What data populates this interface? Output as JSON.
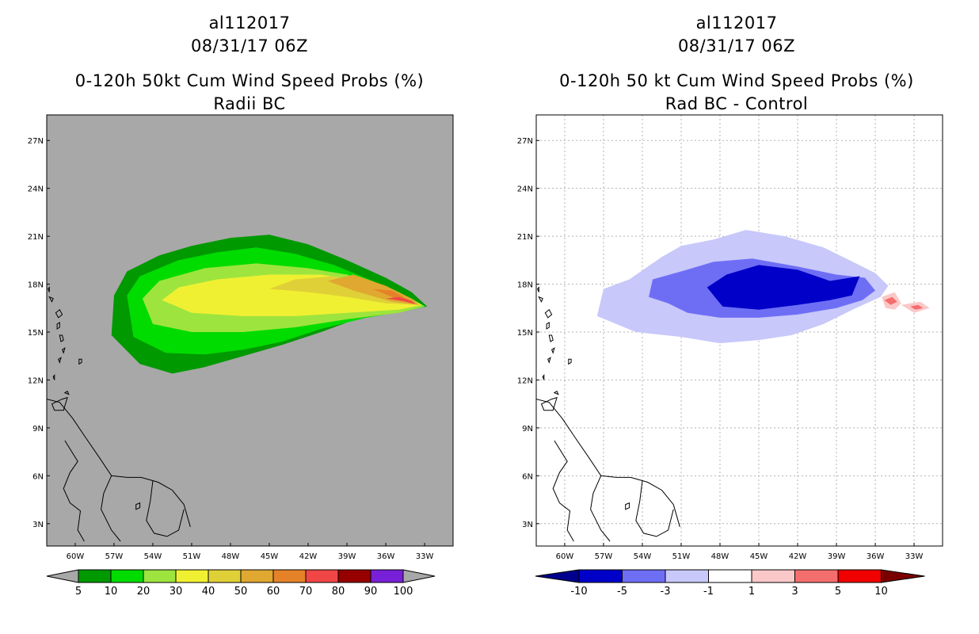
{
  "chart_data": [
    {
      "type": "heatmap",
      "title_line1": "al112017",
      "title_line2": "08/31/17 06Z",
      "title_line3": "0-120h 50kt Cum Wind Speed Probs (%)",
      "title_line4": "Radii BC",
      "x_ticks": [
        "60W",
        "57W",
        "54W",
        "51W",
        "48W",
        "45W",
        "42W",
        "39W",
        "36W",
        "33W"
      ],
      "y_ticks": [
        "3N",
        "6N",
        "9N",
        "12N",
        "15N",
        "18N",
        "21N",
        "24N",
        "27N"
      ],
      "lon_range": [
        -62.2,
        -30.8
      ],
      "lat_range": [
        1.6,
        28.6
      ],
      "background_color": "#a8a8a8",
      "grid": false,
      "colorbar": {
        "labels": [
          "5",
          "10",
          "20",
          "30",
          "40",
          "50",
          "60",
          "70",
          "80",
          "90",
          "100"
        ],
        "colors": [
          "#009900",
          "#00dc00",
          "#9ee43e",
          "#f0f032",
          "#e0d038",
          "#e0a830",
          "#e58228",
          "#f04646",
          "#960000",
          "#7820d8"
        ],
        "under_color": "#a8a8a8",
        "over_color": "#a8a8a8"
      },
      "levels": [
        {
          "label": "5",
          "color": "#009900",
          "points": [
            [
              -57,
              17.3
            ],
            [
              -56,
              18.8
            ],
            [
              -53.5,
              19.8
            ],
            [
              -51,
              20.4
            ],
            [
              -48,
              20.9
            ],
            [
              -45,
              21.1
            ],
            [
              -42,
              20.5
            ],
            [
              -39,
              19.5
            ],
            [
              -36,
              18.4
            ],
            [
              -34,
              17.5
            ],
            [
              -32.8,
              16.6
            ],
            [
              -33.5,
              16.5
            ],
            [
              -35.5,
              16.4
            ],
            [
              -38,
              15.9
            ],
            [
              -41,
              15.0
            ],
            [
              -44,
              14.2
            ],
            [
              -47,
              13.5
            ],
            [
              -50,
              12.8
            ],
            [
              -52.5,
              12.4
            ],
            [
              -55,
              13.0
            ],
            [
              -57.2,
              14.8
            ]
          ]
        },
        {
          "label": "10",
          "color": "#00dc00",
          "points": [
            [
              -56,
              17.3
            ],
            [
              -55,
              18.5
            ],
            [
              -52,
              19.5
            ],
            [
              -49,
              20.0
            ],
            [
              -46,
              20.3
            ],
            [
              -43,
              19.9
            ],
            [
              -40,
              19.2
            ],
            [
              -37,
              18.2
            ],
            [
              -34.5,
              17.3
            ],
            [
              -32.9,
              16.6
            ],
            [
              -34.5,
              16.3
            ],
            [
              -37.5,
              15.9
            ],
            [
              -41,
              15.2
            ],
            [
              -44,
              14.4
            ],
            [
              -47,
              13.9
            ],
            [
              -50,
              13.6
            ],
            [
              -53,
              13.7
            ],
            [
              -55.5,
              14.7
            ]
          ]
        },
        {
          "label": "20",
          "color": "#9ee43e",
          "points": [
            [
              -54.8,
              17.1
            ],
            [
              -53.5,
              18.2
            ],
            [
              -50,
              19.0
            ],
            [
              -46,
              19.3
            ],
            [
              -42,
              19.0
            ],
            [
              -39,
              18.6
            ],
            [
              -36,
              17.8
            ],
            [
              -34,
              17.1
            ],
            [
              -33,
              16.6
            ],
            [
              -35,
              16.2
            ],
            [
              -39,
              15.8
            ],
            [
              -43,
              15.3
            ],
            [
              -47,
              15.0
            ],
            [
              -51,
              15.0
            ],
            [
              -54,
              15.5
            ]
          ]
        },
        {
          "label": "30",
          "color": "#f0f032",
          "points": [
            [
              -53.3,
              17.0
            ],
            [
              -52,
              17.8
            ],
            [
              -49,
              18.3
            ],
            [
              -45,
              18.6
            ],
            [
              -41,
              18.6
            ],
            [
              -37.5,
              18.1
            ],
            [
              -35,
              17.4
            ],
            [
              -33.2,
              16.7
            ],
            [
              -35,
              16.4
            ],
            [
              -39,
              16.2
            ],
            [
              -43,
              16.0
            ],
            [
              -47,
              16.0
            ],
            [
              -51,
              16.2
            ]
          ]
        },
        {
          "label": "40",
          "color": "#e0d038",
          "points": [
            [
              -45,
              17.7
            ],
            [
              -43,
              18.3
            ],
            [
              -40,
              18.5
            ],
            [
              -37,
              18.0
            ],
            [
              -34.5,
              17.2
            ],
            [
              -33.3,
              16.7
            ],
            [
              -36,
              16.8
            ],
            [
              -39,
              17.2
            ],
            [
              -42,
              17.5
            ]
          ]
        },
        {
          "label": "50",
          "color": "#e0a830",
          "points": [
            [
              -40.5,
              18.2
            ],
            [
              -38.5,
              18.6
            ],
            [
              -36,
              17.9
            ],
            [
              -34,
              17.1
            ],
            [
              -33.4,
              16.7
            ],
            [
              -35.5,
              16.9
            ],
            [
              -38.5,
              17.6
            ]
          ]
        },
        {
          "label": "60",
          "color": "#e58228",
          "points": [
            [
              -37,
              17.7
            ],
            [
              -35.5,
              17.6
            ],
            [
              -34,
              16.9
            ],
            [
              -33.6,
              16.7
            ],
            [
              -35.5,
              17.2
            ]
          ]
        },
        {
          "label": "70",
          "color": "#f04646",
          "points": [
            [
              -36,
              17.1
            ],
            [
              -35,
              17.2
            ],
            [
              -34,
              16.95
            ],
            [
              -33.7,
              16.75
            ],
            [
              -34.7,
              16.95
            ]
          ]
        }
      ],
      "land": true
    },
    {
      "type": "heatmap",
      "title_line1": "al112017",
      "title_line2": "08/31/17 06Z",
      "title_line3": "0-120h 50 kt Cum Wind Speed Probs (%)",
      "title_line4": "Rad BC - Control",
      "x_ticks": [
        "60W",
        "57W",
        "54W",
        "51W",
        "48W",
        "45W",
        "42W",
        "39W",
        "36W",
        "33W"
      ],
      "y_ticks": [
        "3N",
        "6N",
        "9N",
        "12N",
        "15N",
        "18N",
        "21N",
        "24N",
        "27N"
      ],
      "lon_range": [
        -62.2,
        -30.8
      ],
      "lat_range": [
        1.6,
        28.6
      ],
      "background_color": "#ffffff",
      "grid": true,
      "colorbar": {
        "labels": [
          "-10",
          "-5",
          "-3",
          "-1",
          "1",
          "3",
          "5",
          "10"
        ],
        "colors": [
          "#0000c8",
          "#6e6ef5",
          "#c8c8fa",
          "#ffffff",
          "#fac8c8",
          "#f56e6e",
          "#f00000"
        ],
        "under_color": "#00008c",
        "over_color": "#7a0000"
      },
      "levels": [
        {
          "label": "-1",
          "color": "#c8c8fa",
          "points": [
            [
              -57,
              17.7
            ],
            [
              -55,
              18.3
            ],
            [
              -52.5,
              19.7
            ],
            [
              -51,
              20.4
            ],
            [
              -48.5,
              20.8
            ],
            [
              -46,
              21.4
            ],
            [
              -43,
              21.0
            ],
            [
              -40,
              20.3
            ],
            [
              -38,
              19.5
            ],
            [
              -36,
              18.7
            ],
            [
              -35,
              17.9
            ],
            [
              -35.6,
              17.2
            ],
            [
              -37.5,
              16.5
            ],
            [
              -40,
              15.5
            ],
            [
              -42.5,
              14.8
            ],
            [
              -45,
              14.5
            ],
            [
              -48,
              14.3
            ],
            [
              -51,
              14.7
            ],
            [
              -54.5,
              15.0
            ],
            [
              -57.5,
              16.0
            ]
          ]
        },
        {
          "label": "-3",
          "color": "#6e6ef5",
          "points": [
            [
              -53.2,
              18.3
            ],
            [
              -51,
              18.8
            ],
            [
              -48.5,
              19.4
            ],
            [
              -45.5,
              19.6
            ],
            [
              -42,
              19.1
            ],
            [
              -39,
              18.6
            ],
            [
              -36.8,
              18.4
            ],
            [
              -36,
              17.6
            ],
            [
              -37,
              17.0
            ],
            [
              -39,
              16.5
            ],
            [
              -42,
              16.1
            ],
            [
              -45,
              15.9
            ],
            [
              -48,
              15.9
            ],
            [
              -50.5,
              16.2
            ],
            [
              -52,
              16.8
            ],
            [
              -53.5,
              17.2
            ]
          ]
        },
        {
          "label": "-5",
          "color": "#0000c8",
          "points": [
            [
              -49,
              17.8
            ],
            [
              -47.5,
              18.6
            ],
            [
              -45,
              19.2
            ],
            [
              -42,
              18.9
            ],
            [
              -39.5,
              18.2
            ],
            [
              -37.2,
              18.5
            ],
            [
              -37.8,
              17.3
            ],
            [
              -39.5,
              17.0
            ],
            [
              -42,
              16.7
            ],
            [
              -45,
              16.4
            ],
            [
              -47.8,
              16.6
            ]
          ]
        },
        {
          "label": "1",
          "color": "#fac8c8",
          "points": [
            [
              -35.5,
              17.2
            ],
            [
              -34.5,
              17.5
            ],
            [
              -34,
              16.8
            ],
            [
              -34.5,
              16.4
            ],
            [
              -35.2,
              16.5
            ]
          ]
        },
        {
          "label": "1",
          "color": "#fac8c8",
          "points": [
            [
              -34,
              16.7
            ],
            [
              -32.5,
              16.9
            ],
            [
              -31.8,
              16.5
            ],
            [
              -33,
              16.2
            ]
          ]
        },
        {
          "label": "3",
          "color": "#f56e6e",
          "points": [
            [
              -35.3,
              17.0
            ],
            [
              -34.7,
              17.2
            ],
            [
              -34.3,
              16.9
            ],
            [
              -34.8,
              16.7
            ]
          ]
        },
        {
          "label": "3",
          "color": "#f56e6e",
          "points": [
            [
              -33.3,
              16.6
            ],
            [
              -32.7,
              16.7
            ],
            [
              -32.3,
              16.5
            ],
            [
              -32.9,
              16.4
            ]
          ]
        }
      ],
      "land": true
    }
  ]
}
